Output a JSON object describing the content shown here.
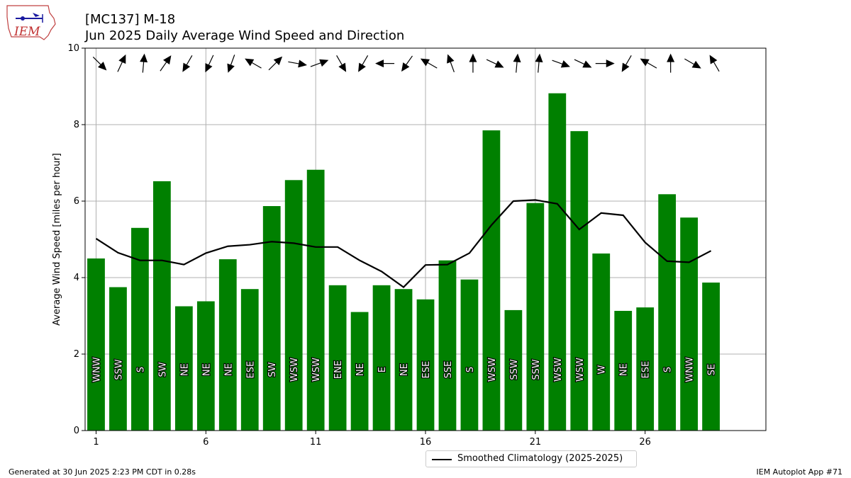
{
  "header": {
    "title_line1": "[MC137] M-18",
    "title_line2": "Jun 2025 Daily Average Wind Speed and Direction"
  },
  "logo": {
    "text": "IEM",
    "icon": "iowa-state-outline-logo"
  },
  "footer": {
    "generated": "Generated at 30 Jun 2025 2:23 PM CDT in 0.28s",
    "app": "IEM Autoplot App #71"
  },
  "colors": {
    "bar": "#008000",
    "line": "#000000",
    "grid": "#b0b0b0"
  },
  "chart_data": {
    "type": "bar",
    "title": "[MC137] M-18",
    "subtitle": "Jun 2025 Daily Average Wind Speed and Direction",
    "ylabel": "Average Wind Speed [miles per hour]",
    "xlabel": "",
    "xlim": [
      0.5,
      31.5
    ],
    "ylim": [
      0,
      10
    ],
    "x_ticks": [
      1,
      6,
      11,
      16,
      21,
      26
    ],
    "y_ticks": [
      0,
      2,
      4,
      6,
      8,
      10
    ],
    "grid": true,
    "legend_position": "bottom-center",
    "days": [
      1,
      2,
      3,
      4,
      5,
      6,
      7,
      8,
      9,
      10,
      11,
      12,
      13,
      14,
      15,
      16,
      17,
      18,
      19,
      20,
      21,
      22,
      23,
      24,
      25,
      26,
      27,
      28,
      29
    ],
    "series": [
      {
        "name": "Daily Average Wind Speed",
        "values": [
          4.5,
          3.75,
          5.3,
          6.52,
          3.25,
          3.38,
          4.48,
          3.7,
          5.87,
          6.55,
          6.82,
          3.8,
          3.1,
          3.8,
          3.7,
          3.43,
          4.45,
          3.95,
          7.85,
          3.15,
          5.95,
          8.82,
          7.83,
          4.63,
          3.13,
          3.22,
          6.18,
          5.57,
          3.87
        ]
      },
      {
        "name": "Smoothed Climatology (2025-2025)",
        "values": [
          5.02,
          4.65,
          4.45,
          4.45,
          4.34,
          4.64,
          4.82,
          4.86,
          4.94,
          4.9,
          4.8,
          4.8,
          4.45,
          4.16,
          3.75,
          4.33,
          4.34,
          4.64,
          5.37,
          6.0,
          6.03,
          5.93,
          5.26,
          5.69,
          5.63,
          4.92,
          4.43,
          4.4,
          4.7
        ]
      }
    ],
    "direction_labels": [
      "WNW",
      "SSW",
      "S",
      "SW",
      "NE",
      "NE",
      "NE",
      "ESE",
      "SW",
      "WSW",
      "WSW",
      "ENE",
      "NE",
      "E",
      "NE",
      "ESE",
      "SSE",
      "S",
      "WSW",
      "SSW",
      "SSW",
      "WSW",
      "WSW",
      "W",
      "NE",
      "ESE",
      "S",
      "WNW",
      "SE"
    ],
    "direction_arrow_bearings_deg": [
      135,
      25,
      5,
      35,
      210,
      205,
      200,
      300,
      45,
      100,
      70,
      150,
      210,
      270,
      215,
      300,
      340,
      0,
      115,
      5,
      5,
      110,
      115,
      90,
      210,
      300,
      0,
      120,
      330
    ]
  },
  "legend": {
    "label": "Smoothed Climatology (2025-2025)"
  }
}
